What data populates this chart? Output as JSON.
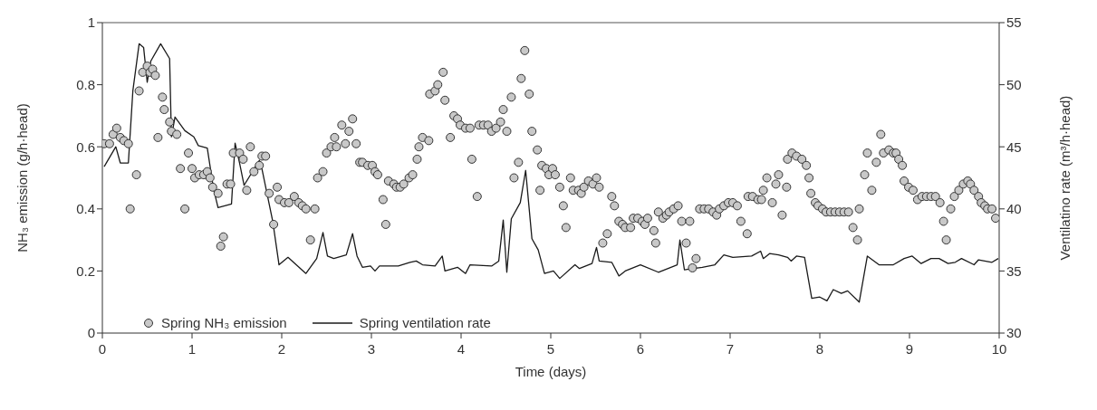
{
  "chart_data": {
    "type": "scatter",
    "xlabel": "Time (days)",
    "ylabel": "NH₃ emission (g/h·head)",
    "y2label": "Ventilatino rate (m³/h·head)",
    "xlim": [
      0,
      10
    ],
    "xticks": [
      0,
      1,
      2,
      3,
      4,
      5,
      6,
      7,
      8,
      9,
      10
    ],
    "ylim": [
      0,
      1
    ],
    "yticks": [
      0,
      0.2,
      0.4,
      0.6,
      0.8,
      1
    ],
    "y2lim": [
      30,
      55
    ],
    "y2ticks": [
      30,
      35,
      40,
      45,
      50,
      55
    ],
    "legend": "bottom left",
    "grid": false,
    "series": [
      {
        "name": "Spring NH₃ emission",
        "marker": "circle",
        "color": "#c8c8c8",
        "x": [
          0.02,
          0.08,
          0.12,
          0.16,
          0.2,
          0.24,
          0.29,
          0.31,
          0.38,
          0.41,
          0.45,
          0.5,
          0.53,
          0.56,
          0.59,
          0.62,
          0.67,
          0.69,
          0.75,
          0.77,
          0.83,
          0.87,
          0.92,
          0.96,
          1.0,
          1.03,
          1.08,
          1.13,
          1.17,
          1.2,
          1.23,
          1.29,
          1.32,
          1.35,
          1.39,
          1.43,
          1.46,
          1.53,
          1.57,
          1.61,
          1.65,
          1.69,
          1.75,
          1.78,
          1.82,
          1.86,
          1.91,
          1.95,
          1.97,
          2.03,
          2.08,
          2.14,
          2.19,
          2.23,
          2.27,
          2.32,
          2.37,
          2.4,
          2.46,
          2.5,
          2.55,
          2.59,
          2.61,
          2.67,
          2.71,
          2.75,
          2.79,
          2.83,
          2.87,
          2.9,
          2.96,
          3.01,
          3.04,
          3.07,
          3.13,
          3.16,
          3.19,
          3.25,
          3.28,
          3.32,
          3.36,
          3.42,
          3.46,
          3.51,
          3.53,
          3.57,
          3.64,
          3.65,
          3.71,
          3.74,
          3.8,
          3.82,
          3.88,
          3.92,
          3.96,
          3.99,
          4.05,
          4.1,
          4.12,
          4.18,
          4.2,
          4.25,
          4.3,
          4.34,
          4.39,
          4.44,
          4.47,
          4.51,
          4.56,
          4.59,
          4.64,
          4.67,
          4.71,
          4.76,
          4.79,
          4.85,
          4.88,
          4.9,
          4.95,
          4.98,
          5.02,
          5.05,
          5.1,
          5.14,
          5.17,
          5.22,
          5.25,
          5.31,
          5.34,
          5.37,
          5.42,
          5.47,
          5.51,
          5.54,
          5.58,
          5.63,
          5.68,
          5.71,
          5.76,
          5.8,
          5.83,
          5.89,
          5.92,
          5.97,
          6.02,
          6.05,
          6.08,
          6.15,
          6.17,
          6.2,
          6.25,
          6.29,
          6.32,
          6.37,
          6.42,
          6.46,
          6.51,
          6.55,
          6.58,
          6.62,
          6.66,
          6.71,
          6.76,
          6.81,
          6.85,
          6.88,
          6.93,
          6.98,
          7.03,
          7.08,
          7.12,
          7.19,
          7.2,
          7.25,
          7.31,
          7.35,
          7.37,
          7.41,
          7.47,
          7.51,
          7.54,
          7.58,
          7.63,
          7.64,
          7.69,
          7.74,
          7.8,
          7.85,
          7.88,
          7.9,
          7.95,
          7.98,
          8.03,
          8.07,
          8.12,
          8.17,
          8.22,
          8.27,
          8.32,
          8.37,
          8.42,
          8.44,
          8.5,
          8.53,
          8.58,
          8.63,
          8.68,
          8.71,
          8.77,
          8.82,
          8.85,
          8.88,
          8.92,
          8.94,
          8.99,
          9.04,
          9.09,
          9.14,
          9.19,
          9.24,
          9.29,
          9.34,
          9.38,
          9.41,
          9.46,
          9.5,
          9.55,
          9.6,
          9.65,
          9.68,
          9.72,
          9.77,
          9.8,
          9.84,
          9.87,
          9.92,
          9.96
        ],
        "values": [
          0.61,
          0.61,
          0.64,
          0.66,
          0.63,
          0.62,
          0.61,
          0.4,
          0.51,
          0.78,
          0.84,
          0.86,
          0.84,
          0.85,
          0.83,
          0.63,
          0.76,
          0.72,
          0.68,
          0.65,
          0.64,
          0.53,
          0.4,
          0.58,
          0.53,
          0.5,
          0.51,
          0.51,
          0.52,
          0.5,
          0.47,
          0.45,
          0.28,
          0.31,
          0.48,
          0.48,
          0.58,
          0.58,
          0.56,
          0.46,
          0.6,
          0.52,
          0.54,
          0.57,
          0.57,
          0.45,
          0.35,
          0.47,
          0.43,
          0.42,
          0.42,
          0.44,
          0.42,
          0.41,
          0.4,
          0.3,
          0.4,
          0.5,
          0.52,
          0.58,
          0.6,
          0.63,
          0.6,
          0.67,
          0.61,
          0.65,
          0.69,
          0.61,
          0.55,
          0.55,
          0.54,
          0.54,
          0.52,
          0.51,
          0.43,
          0.35,
          0.49,
          0.48,
          0.47,
          0.47,
          0.48,
          0.5,
          0.51,
          0.56,
          0.6,
          0.63,
          0.62,
          0.77,
          0.78,
          0.8,
          0.84,
          0.75,
          0.63,
          0.7,
          0.69,
          0.67,
          0.66,
          0.66,
          0.56,
          0.44,
          0.67,
          0.67,
          0.67,
          0.65,
          0.66,
          0.68,
          0.72,
          0.65,
          0.76,
          0.5,
          0.55,
          0.82,
          0.91,
          0.77,
          0.65,
          0.59,
          0.46,
          0.54,
          0.53,
          0.51,
          0.53,
          0.51,
          0.47,
          0.41,
          0.34,
          0.5,
          0.46,
          0.46,
          0.45,
          0.47,
          0.49,
          0.48,
          0.5,
          0.47,
          0.29,
          0.32,
          0.44,
          0.41,
          0.36,
          0.35,
          0.34,
          0.34,
          0.37,
          0.37,
          0.36,
          0.35,
          0.37,
          0.33,
          0.29,
          0.39,
          0.37,
          0.38,
          0.39,
          0.4,
          0.41,
          0.36,
          0.29,
          0.36,
          0.21,
          0.24,
          0.4,
          0.4,
          0.4,
          0.39,
          0.38,
          0.4,
          0.41,
          0.42,
          0.42,
          0.41,
          0.36,
          0.32,
          0.44,
          0.44,
          0.43,
          0.43,
          0.46,
          0.5,
          0.42,
          0.48,
          0.51,
          0.38,
          0.47,
          0.56,
          0.58,
          0.57,
          0.56,
          0.54,
          0.5,
          0.45,
          0.42,
          0.41,
          0.4,
          0.39,
          0.39,
          0.39,
          0.39,
          0.39,
          0.39,
          0.34,
          0.3,
          0.4,
          0.51,
          0.58,
          0.46,
          0.55,
          0.64,
          0.58,
          0.59,
          0.58,
          0.58,
          0.56,
          0.54,
          0.49,
          0.47,
          0.46,
          0.43,
          0.44,
          0.44,
          0.44,
          0.44,
          0.42,
          0.36,
          0.3,
          0.4,
          0.44,
          0.46,
          0.48,
          0.49,
          0.48,
          0.46,
          0.44,
          0.42,
          0.41,
          0.4,
          0.4,
          0.37
        ]
      },
      {
        "name": "Spring ventilation rate",
        "type": "line",
        "axis": "y2",
        "marker": "none",
        "line_style": "solid",
        "color": "#1a1a1a",
        "x": [
          0.02,
          0.15,
          0.2,
          0.29,
          0.34,
          0.41,
          0.46,
          0.5,
          0.54,
          0.65,
          0.75,
          0.77,
          0.81,
          0.92,
          1.02,
          1.07,
          1.17,
          1.24,
          1.29,
          1.44,
          1.48,
          1.53,
          1.58,
          1.75,
          1.78,
          1.9,
          1.97,
          2.07,
          2.27,
          2.39,
          2.46,
          2.51,
          2.58,
          2.72,
          2.79,
          2.84,
          2.9,
          2.99,
          3.04,
          3.09,
          3.3,
          3.43,
          3.5,
          3.57,
          3.71,
          3.79,
          3.82,
          3.96,
          4.05,
          4.1,
          4.34,
          4.42,
          4.47,
          4.51,
          4.56,
          4.66,
          4.72,
          4.79,
          4.86,
          4.93,
          5.03,
          5.1,
          5.27,
          5.32,
          5.46,
          5.51,
          5.54,
          5.68,
          5.76,
          5.83,
          6.0,
          6.2,
          6.41,
          6.44,
          6.49,
          6.69,
          6.83,
          6.93,
          7.03,
          7.24,
          7.34,
          7.37,
          7.44,
          7.54,
          7.64,
          7.68,
          7.74,
          7.83,
          7.91,
          8.0,
          8.08,
          8.15,
          8.24,
          8.31,
          8.44,
          8.53,
          8.66,
          8.82,
          8.94,
          9.03,
          9.13,
          9.24,
          9.33,
          9.43,
          9.51,
          9.58,
          9.72,
          9.77,
          9.92,
          9.99
        ],
        "values": [
          43.4,
          45.0,
          43.7,
          43.7,
          49.5,
          53.3,
          53.0,
          50.2,
          51.9,
          53.3,
          52.1,
          45.8,
          47.4,
          46.3,
          45.8,
          45.1,
          44.9,
          41.6,
          40.1,
          40.4,
          45.3,
          43.7,
          41.9,
          43.9,
          43.2,
          39.0,
          35.5,
          36.1,
          34.8,
          36.0,
          38.1,
          36.2,
          36.0,
          36.3,
          38.0,
          36.2,
          35.3,
          35.4,
          35.0,
          35.4,
          35.4,
          35.7,
          35.8,
          35.5,
          35.4,
          36.2,
          35.0,
          35.3,
          34.8,
          35.5,
          35.4,
          35.8,
          39.1,
          34.9,
          39.2,
          40.5,
          43.1,
          37.6,
          36.7,
          34.8,
          35.0,
          34.4,
          35.5,
          35.2,
          35.6,
          36.9,
          35.8,
          35.7,
          34.6,
          35.0,
          35.5,
          34.9,
          35.5,
          37.5,
          35.1,
          35.3,
          35.5,
          36.3,
          36.1,
          36.2,
          36.6,
          36.0,
          36.4,
          36.3,
          36.1,
          35.8,
          36.2,
          36.1,
          32.8,
          32.9,
          32.6,
          33.5,
          33.2,
          33.4,
          32.5,
          36.2,
          35.5,
          35.5,
          36.0,
          36.2,
          35.6,
          36.0,
          36.0,
          35.6,
          35.7,
          36.0,
          35.5,
          35.9,
          35.7,
          36.0
        ]
      }
    ]
  }
}
